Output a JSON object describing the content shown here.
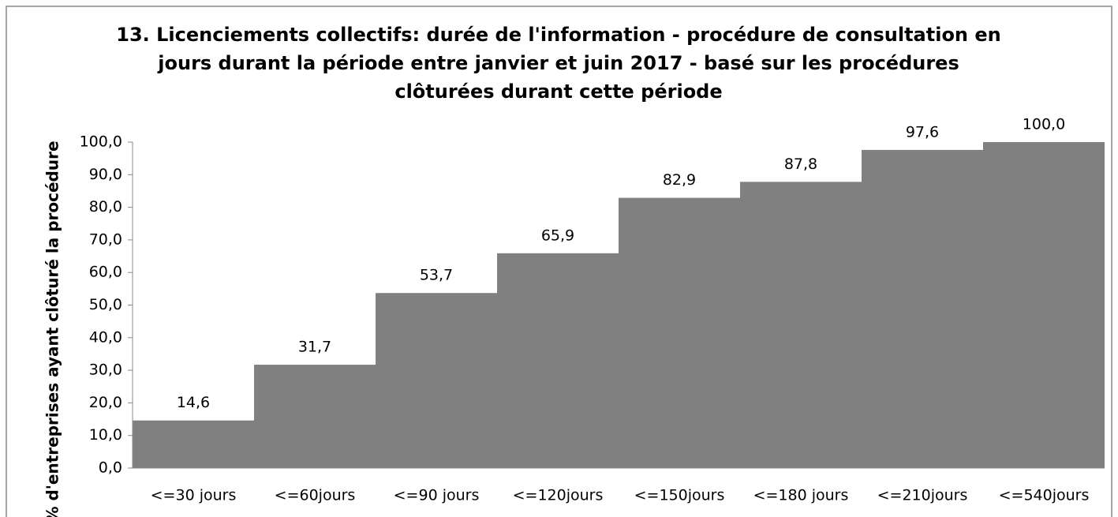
{
  "chart_data": {
    "type": "bar",
    "title": [
      "13. Licenciements collectifs:  durée de l'information - procédure de consultation en",
      "jours durant la période entre janvier et juin 2017  -  basé sur les procédures",
      "clôturées durant cette période"
    ],
    "y_label": "% d'entreprises ayant clôturé la procédure",
    "categories": [
      "<=30 jours",
      "<=60jours",
      "<=90 jours",
      "<=120jours",
      "<=150jours",
      "<=180 jours",
      "<=210jours",
      "<=540jours"
    ],
    "values": [
      14.6,
      31.7,
      53.7,
      65.9,
      82.9,
      87.8,
      97.6,
      100.0
    ],
    "value_labels": [
      "14,6",
      "31,7",
      "53,7",
      "65,9",
      "82,9",
      "87,8",
      "97,6",
      "100,0"
    ],
    "color": "#808080",
    "ylim": [
      0,
      100
    ],
    "yticks": [
      {
        "value": 0,
        "label": "0,0"
      },
      {
        "value": 10,
        "label": "10,0"
      },
      {
        "value": 20,
        "label": "20,0"
      },
      {
        "value": 30,
        "label": "30,0"
      },
      {
        "value": 40,
        "label": "40,0"
      },
      {
        "value": 50,
        "label": "50,0"
      },
      {
        "value": 60,
        "label": "60,0"
      },
      {
        "value": 70,
        "label": "70,0"
      },
      {
        "value": 80,
        "label": "80,0"
      },
      {
        "value": 90,
        "label": "90,0"
      },
      {
        "value": 100,
        "label": "100,0"
      }
    ],
    "grid": false
  }
}
